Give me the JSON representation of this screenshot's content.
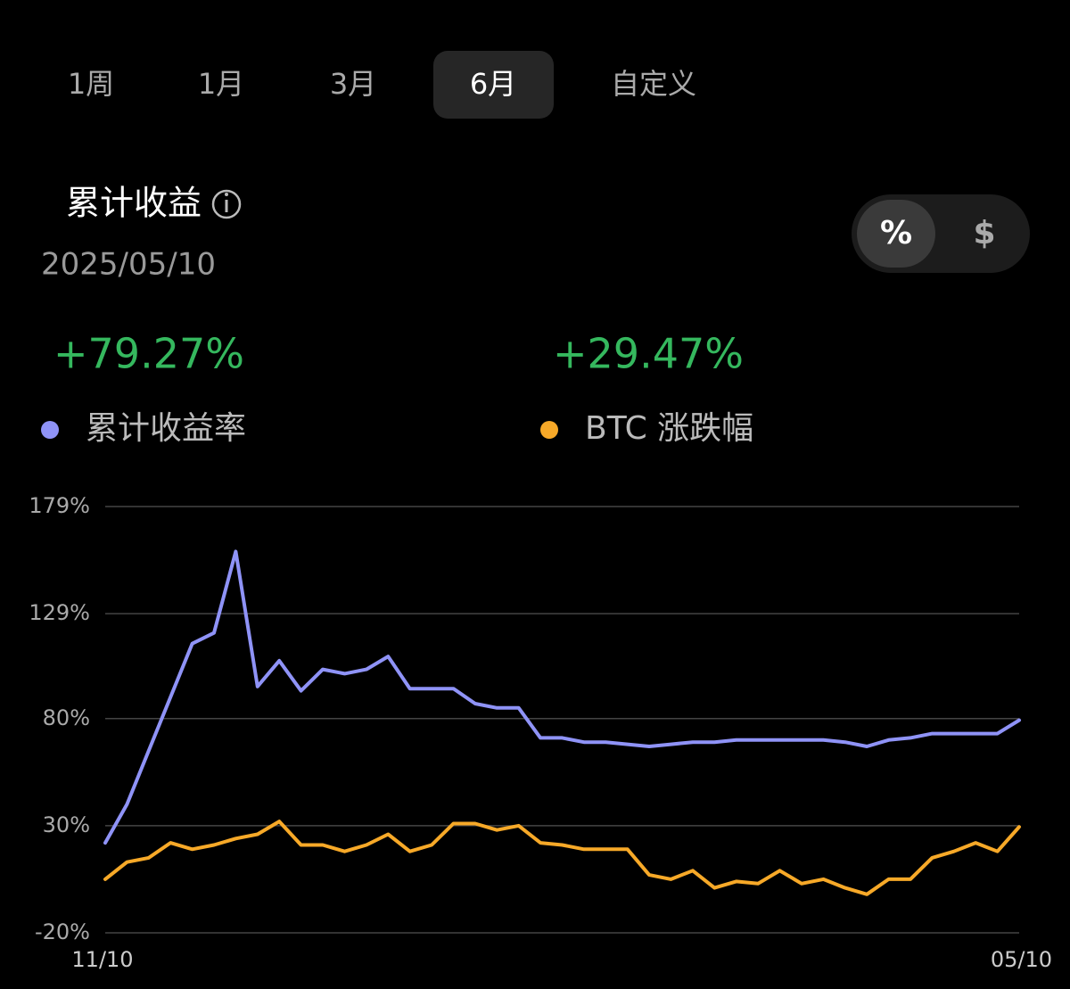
{
  "tabs": {
    "items": [
      "1周",
      "1月",
      "3月",
      "6月",
      "自定义"
    ],
    "active": 3
  },
  "header": {
    "title": "累计收益",
    "date": "2025/05/10"
  },
  "toggle": {
    "items": [
      "%",
      "$"
    ],
    "active": 0
  },
  "summary": {
    "items": [
      "+79.27%",
      "+29.47%"
    ]
  },
  "chart_data": {
    "type": "line",
    "categories": [
      "11/10",
      null,
      null,
      null,
      null,
      null,
      null,
      null,
      null,
      null,
      null,
      null,
      null,
      null,
      null,
      null,
      null,
      null,
      null,
      null,
      null,
      null,
      null,
      null,
      null,
      null,
      null,
      null,
      null,
      null,
      null,
      null,
      null,
      null,
      null,
      null,
      null,
      null,
      null,
      null,
      null,
      null,
      "05/10"
    ],
    "series": [
      {
        "name": "累计收益率",
        "color": "#8f93f7",
        "values": [
          22,
          40,
          65,
          90,
          115,
          120,
          158,
          95,
          107,
          93,
          103,
          101,
          103,
          109,
          94,
          94,
          94,
          87,
          85,
          85,
          71,
          71,
          69,
          69,
          68,
          67,
          68,
          69,
          69,
          70,
          70,
          70,
          70,
          70,
          69,
          67,
          70,
          71,
          73,
          73,
          73,
          73,
          79.27
        ]
      },
      {
        "name": "BTC 涨跌幅",
        "color": "#f7a928",
        "values": [
          5,
          13,
          15,
          22,
          19,
          21,
          24,
          26,
          32,
          21,
          21,
          18,
          21,
          26,
          18,
          21,
          31,
          31,
          28,
          30,
          22,
          21,
          19,
          19,
          19,
          7,
          5,
          9,
          1,
          4,
          3,
          9,
          3,
          5,
          1,
          -2,
          5,
          5,
          15,
          18,
          22,
          18,
          29.47
        ]
      }
    ],
    "ylim": [
      -20,
      179
    ],
    "yticks": [
      {
        "value": 179,
        "label": "179%"
      },
      {
        "value": 129,
        "label": "129%"
      },
      {
        "value": 80,
        "label": "80%"
      },
      {
        "value": 30,
        "label": "30%"
      },
      {
        "value": -20,
        "label": "-20%"
      }
    ],
    "grid": true
  }
}
